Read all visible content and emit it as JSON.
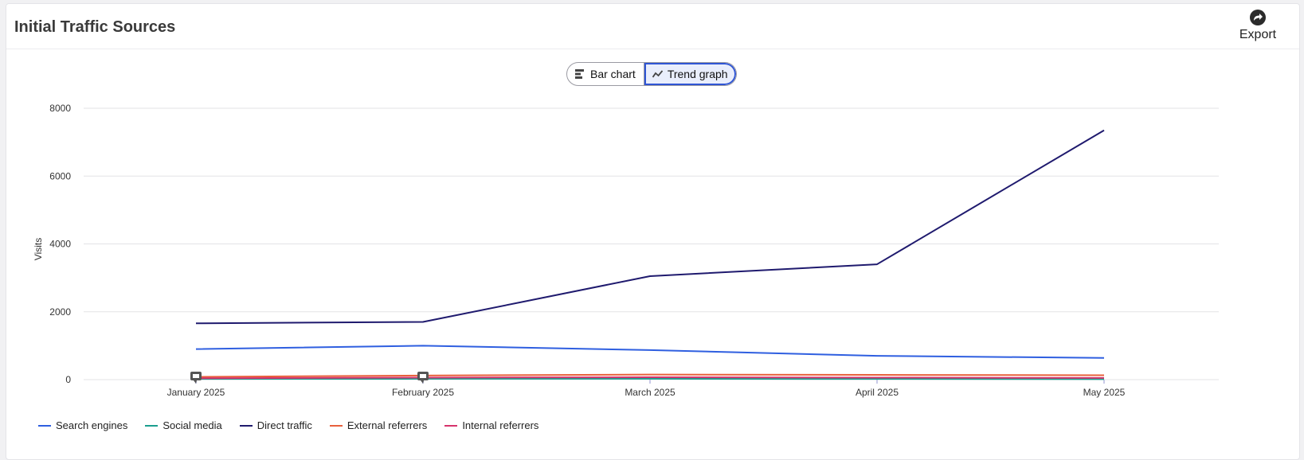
{
  "header": {
    "title": "Initial Traffic Sources",
    "export_label": "Export"
  },
  "view_toggle": {
    "bar_label": "Bar chart",
    "trend_label": "Trend graph",
    "active": "Trend graph"
  },
  "chart_data": {
    "type": "line",
    "ylabel": "Visits",
    "xlabel": "",
    "ylim": [
      0,
      8000
    ],
    "yticks": [
      0,
      2000,
      4000,
      6000,
      8000
    ],
    "ytick_labels": [
      "0",
      "2000",
      "4000",
      "6000",
      "8000"
    ],
    "categories": [
      "January 2025",
      "February 2025",
      "March 2025",
      "April 2025",
      "May 2025"
    ],
    "grid": true,
    "legend_position": "bottom-left",
    "series": [
      {
        "name": "Search engines",
        "color": "#2f5fe0",
        "values": [
          900,
          1000,
          870,
          700,
          640
        ]
      },
      {
        "name": "Social media",
        "color": "#1a9e8f",
        "values": [
          20,
          25,
          25,
          20,
          15
        ]
      },
      {
        "name": "Direct traffic",
        "color": "#1f1a6e",
        "values": [
          1660,
          1700,
          3050,
          3400,
          7350
        ]
      },
      {
        "name": "External referrers",
        "color": "#e8603c",
        "values": [
          80,
          120,
          150,
          140,
          130
        ]
      },
      {
        "name": "Internal referrers",
        "color": "#d6336c",
        "values": [
          40,
          60,
          70,
          60,
          50
        ]
      }
    ]
  }
}
